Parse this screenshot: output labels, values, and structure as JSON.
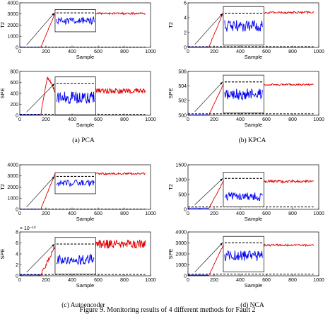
{
  "figure_caption": "Figure 9. Monitoring results of 4 different methods for Fault 2",
  "colors": {
    "fault": "#e00000",
    "inset": "#0000ee",
    "normal": "#0000ee",
    "threshold": "#000000"
  },
  "chart_data": [
    {
      "type": "line",
      "panel": "a",
      "caption": "(a) PCA",
      "upper": {
        "ylabel": "T2",
        "xlabel": "Sample",
        "ylim": [
          0,
          4000
        ],
        "yticks": [
          "0",
          "1000",
          "2000",
          "3000",
          "4000"
        ],
        "xlim": [
          0,
          1000
        ],
        "xticks": [
          "0",
          "200",
          "400",
          "600",
          "800",
          "1000"
        ],
        "threshold": 20,
        "baseline": 20,
        "rise_start": 160,
        "rise_end": 270,
        "plateau": 3050,
        "noise": 90,
        "inset_x": [
          270,
          580
        ],
        "inset_y": [
          1400,
          3400
        ],
        "inset_level": 0.5,
        "inset_noise": 0.16,
        "inset_dash": 0.85
      },
      "lower": {
        "ylabel": "SPE",
        "xlabel": "Sample",
        "ylim": [
          0,
          800
        ],
        "yticks": [
          "0",
          "200",
          "400",
          "600",
          "800"
        ],
        "xlim": [
          0,
          1000
        ],
        "xticks": [
          "0",
          "200",
          "400",
          "600",
          "800",
          "1000"
        ],
        "threshold": 20,
        "baseline": 10,
        "rise_start": 160,
        "rise_end": 210,
        "plateau": 440,
        "peak": 680,
        "noise": 50,
        "inset_x": [
          270,
          580
        ],
        "inset_y": [
          10,
          700
        ],
        "inset_level": 0.45,
        "inset_noise": 0.16,
        "inset_dash": 0.82
      }
    },
    {
      "type": "line",
      "panel": "b",
      "caption": "(b) KPCA",
      "upper": {
        "ylabel": "T2",
        "xlabel": "Sample",
        "ylim": [
          0,
          6
        ],
        "yticks": [
          "0",
          "2",
          "4",
          "6"
        ],
        "xlim": [
          0,
          1000
        ],
        "xticks": [
          "0",
          "200",
          "400",
          "600",
          "800",
          "1000"
        ],
        "threshold": 0.1,
        "baseline": 0.05,
        "rise_start": 160,
        "rise_end": 270,
        "plateau": 4.7,
        "noise": 0.15,
        "inset_x": [
          270,
          580
        ],
        "inset_y": [
          0.3,
          5.5
        ],
        "inset_level": 0.5,
        "inset_noise": 0.15,
        "inset_dash": 0.82
      },
      "lower": {
        "ylabel": "SPE",
        "xlabel": "Sample",
        "ylim": [
          500,
          506
        ],
        "yticks": [
          "500",
          "502",
          "504",
          "506"
        ],
        "xlim": [
          0,
          1000
        ],
        "xticks": [
          "0",
          "200",
          "400",
          "600",
          "800",
          "1000"
        ],
        "threshold": 500.2,
        "baseline": 500.05,
        "rise_start": 160,
        "rise_end": 270,
        "plateau": 504.2,
        "noise": 0.12,
        "inset_x": [
          270,
          580
        ],
        "inset_y": [
          500.3,
          505.5
        ],
        "inset_level": 0.5,
        "inset_noise": 0.15,
        "inset_dash": 0.82
      }
    },
    {
      "type": "line",
      "panel": "c",
      "caption": "(c) Autoencoder",
      "upper": {
        "ylabel": "T2",
        "xlabel": "Sample",
        "ylim": [
          0,
          4000
        ],
        "yticks": [
          "0",
          "1000",
          "2000",
          "3000",
          "4000"
        ],
        "xlim": [
          0,
          1000
        ],
        "xticks": [
          "0",
          "200",
          "400",
          "600",
          "800",
          "1000"
        ],
        "threshold": 20,
        "baseline": 20,
        "rise_start": 160,
        "rise_end": 270,
        "plateau": 3200,
        "noise": 90,
        "inset_x": [
          270,
          580
        ],
        "inset_y": [
          1400,
          3300
        ],
        "inset_level": 0.5,
        "inset_noise": 0.15,
        "inset_dash": 0.82
      },
      "lower": {
        "ylabel": "SPE",
        "xlabel": "Sample",
        "ylim": [
          0,
          8
        ],
        "yticks": [
          "0",
          "2",
          "4",
          "6",
          "8"
        ],
        "exponent": "× 10⁻¹⁰",
        "xlim": [
          0,
          1000
        ],
        "xticks": [
          "0",
          "200",
          "400",
          "600",
          "800",
          "1000"
        ],
        "threshold": 0.25,
        "baseline": 0.15,
        "rise_start": 160,
        "rise_end": 280,
        "plateau": 5.8,
        "noise": 0.8,
        "inset_x": [
          270,
          580
        ],
        "inset_y": [
          0.3,
          7.0
        ],
        "inset_level": 0.4,
        "inset_noise": 0.15,
        "inset_dash": 0.82
      }
    },
    {
      "type": "line",
      "panel": "d",
      "caption": "(d) NCA",
      "upper": {
        "ylabel": "T2",
        "xlabel": "Sample",
        "ylim": [
          0,
          1500
        ],
        "yticks": [
          "0",
          "500",
          "1000",
          "1500"
        ],
        "xlim": [
          0,
          1000
        ],
        "xticks": [
          "0",
          "200",
          "400",
          "600",
          "800",
          "1000"
        ],
        "threshold": 80,
        "baseline": 40,
        "rise_start": 160,
        "rise_end": 270,
        "plateau": 940,
        "noise": 45,
        "inset_x": [
          270,
          580
        ],
        "inset_y": [
          80,
          1250
        ],
        "inset_level": 0.3,
        "inset_noise": 0.12,
        "inset_dash": 0.82
      },
      "lower": {
        "ylabel": "SPE",
        "xlabel": "Sample",
        "ylim": [
          0,
          4000
        ],
        "yticks": [
          "0",
          "1000",
          "2000",
          "3000",
          "4000"
        ],
        "xlim": [
          0,
          1000
        ],
        "xticks": [
          "0",
          "200",
          "400",
          "600",
          "800",
          "1000"
        ],
        "threshold": 150,
        "baseline": 60,
        "rise_start": 160,
        "rise_end": 270,
        "plateau": 2800,
        "noise": 90,
        "inset_x": [
          270,
          580
        ],
        "inset_y": [
          350,
          3600
        ],
        "inset_level": 0.45,
        "inset_noise": 0.15,
        "inset_dash": 0.82
      }
    }
  ]
}
